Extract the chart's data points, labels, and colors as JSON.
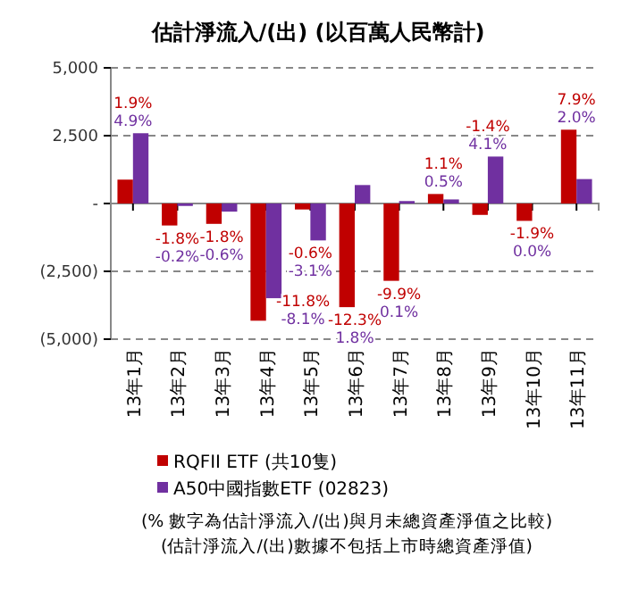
{
  "chart_data": {
    "type": "bar",
    "title": "估計淨流入/(出) (以百萬人民幣計)",
    "categories": [
      "13年1月",
      "13年2月",
      "13年3月",
      "13年4月",
      "13年5月",
      "13年6月",
      "13年7月",
      "13年8月",
      "13年9月",
      "13年10月",
      "13年11月"
    ],
    "series": [
      {
        "name": "RQFII ETF (共10隻)",
        "color": "#c00000",
        "values": [
          880,
          -810,
          -750,
          -4320,
          -220,
          -3820,
          -2850,
          350,
          -420,
          -640,
          2720
        ]
      },
      {
        "name": "A50中國指數ETF (02823)",
        "color": "#7030a0",
        "values": [
          2590,
          -90,
          -300,
          -3490,
          -1360,
          680,
          90,
          150,
          1730,
          0,
          900
        ]
      }
    ],
    "ylim": [
      -5000,
      5000
    ],
    "yticks": [
      {
        "value": -5000,
        "label": "(5,000)"
      },
      {
        "value": -2500,
        "label": "(2,500)"
      },
      {
        "value": 0,
        "label": "-"
      },
      {
        "value": 2500,
        "label": "2,500"
      },
      {
        "value": 5000,
        "label": "5,000"
      }
    ],
    "grid": "y",
    "legend": "bottom",
    "annotations": [
      "(% 數字為估計淨流入/(出)與月未總資產淨值之比較)",
      "(估計淨流入/(出)數據不包括上市時總資產淨值)",
      {
        "text": "1.9%",
        "x": "13年1月",
        "y": 2590
      },
      {
        "text": "-1.8%",
        "x": "13年2月",
        "y": -810
      },
      {
        "text": "-1.8%",
        "x": "13年3月",
        "y": -750
      },
      {
        "text": "-11.8%",
        "x": "13年4月",
        "y": -4320
      },
      {
        "text": "-0.6%",
        "x": "13年5月",
        "y": -1360
      },
      {
        "text": "-12.3%",
        "x": "13年6月",
        "y": -3820
      },
      {
        "text": "-9.9%",
        "x": "13年7月",
        "y": -2850
      },
      {
        "text": "1.1%",
        "x": "13年8月",
        "y": 350
      },
      {
        "text": "-1.4%",
        "x": "13年9月",
        "y": 1730
      },
      {
        "text": "-1.9%",
        "x": "13年10月",
        "y": -640
      },
      {
        "text": "7.9%",
        "x": "13年11月",
        "y": 2720
      },
      {
        "text": "4.9%",
        "x": "13年1月",
        "y": 2590
      },
      {
        "text": "-0.2%",
        "x": "13年2月",
        "y": -810
      },
      {
        "text": "-0.6%",
        "x": "13年3月",
        "y": -750
      },
      {
        "text": "-8.1%",
        "x": "13年4月",
        "y": -4320
      },
      {
        "text": "-3.1%",
        "x": "13年5月",
        "y": -1360
      },
      {
        "text": "1.8%",
        "x": "13年6月",
        "y": -3820
      },
      {
        "text": "0.1%",
        "x": "13年7月",
        "y": -2850
      },
      {
        "text": "0.5%",
        "x": "13年8月",
        "y": 350
      },
      {
        "text": "4.1%",
        "x": "13年9月",
        "y": 1730
      },
      {
        "text": "0.0%",
        "x": "13年10月",
        "y": -640
      },
      {
        "text": "2.0%",
        "x": "13年11月",
        "y": 2720
      }
    ]
  }
}
